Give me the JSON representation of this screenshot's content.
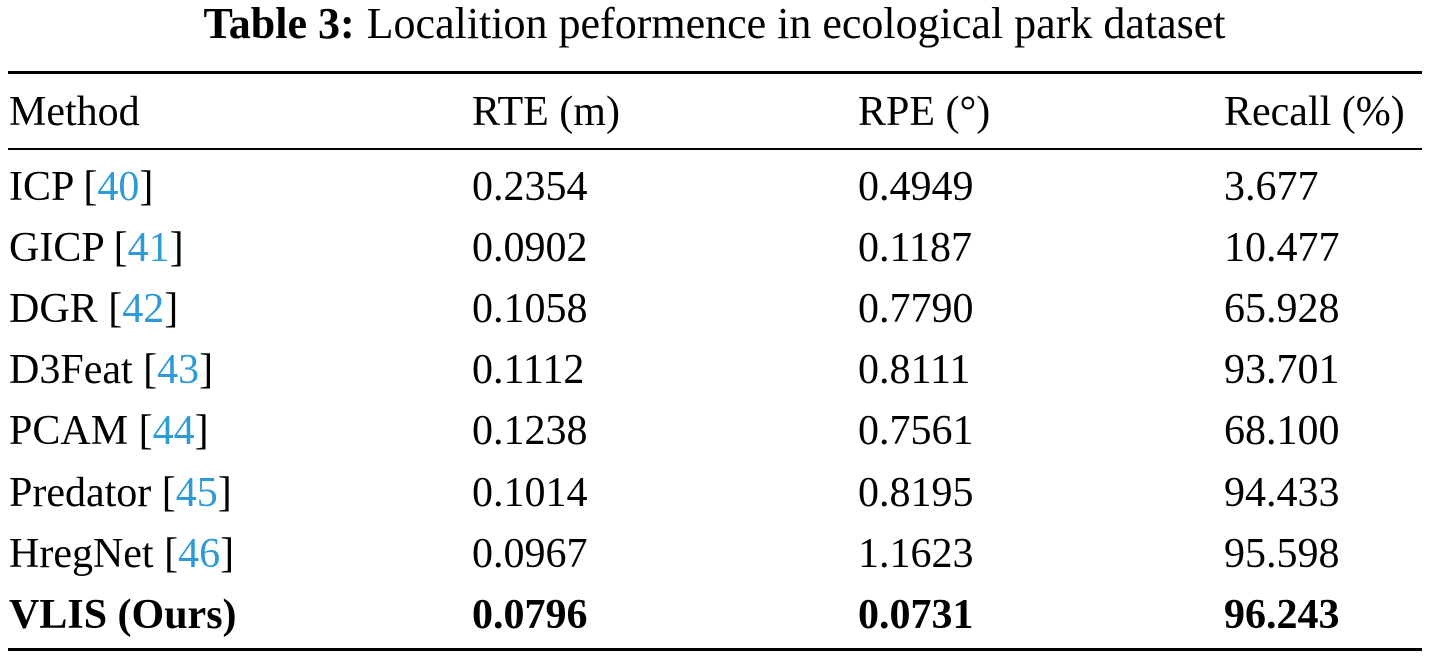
{
  "caption": {
    "label": "Table 3:",
    "text": "Localition peformence in ecological park dataset"
  },
  "table": {
    "headers": [
      "Method",
      "RTE (m)",
      "RPE (°)",
      "Recall (%)"
    ],
    "rows": [
      {
        "method": "ICP",
        "ref": "40",
        "rte": "0.2354",
        "rpe": "0.4949",
        "recall": "3.677"
      },
      {
        "method": "GICP",
        "ref": "41",
        "rte": "0.0902",
        "rpe": "0.1187",
        "recall": "10.477"
      },
      {
        "method": "DGR",
        "ref": "42",
        "rte": "0.1058",
        "rpe": "0.7790",
        "recall": "65.928"
      },
      {
        "method": "D3Feat",
        "ref": "43",
        "rte": "0.1112",
        "rpe": "0.8111",
        "recall": "93.701"
      },
      {
        "method": "PCAM",
        "ref": "44",
        "rte": "0.1238",
        "rpe": "0.7561",
        "recall": "68.100"
      },
      {
        "method": "Predator",
        "ref": "45",
        "rte": "0.1014",
        "rpe": "0.8195",
        "recall": "94.433"
      },
      {
        "method": "HregNet",
        "ref": "46",
        "rte": "0.0967",
        "rpe": "1.1623",
        "recall": "95.598"
      }
    ],
    "ours": {
      "method": "VLIS (Ours)",
      "rte": "0.0796",
      "rpe": "0.0731",
      "recall": "96.243"
    }
  },
  "colors": {
    "citation": "#2e9bd6",
    "text": "#000000"
  }
}
